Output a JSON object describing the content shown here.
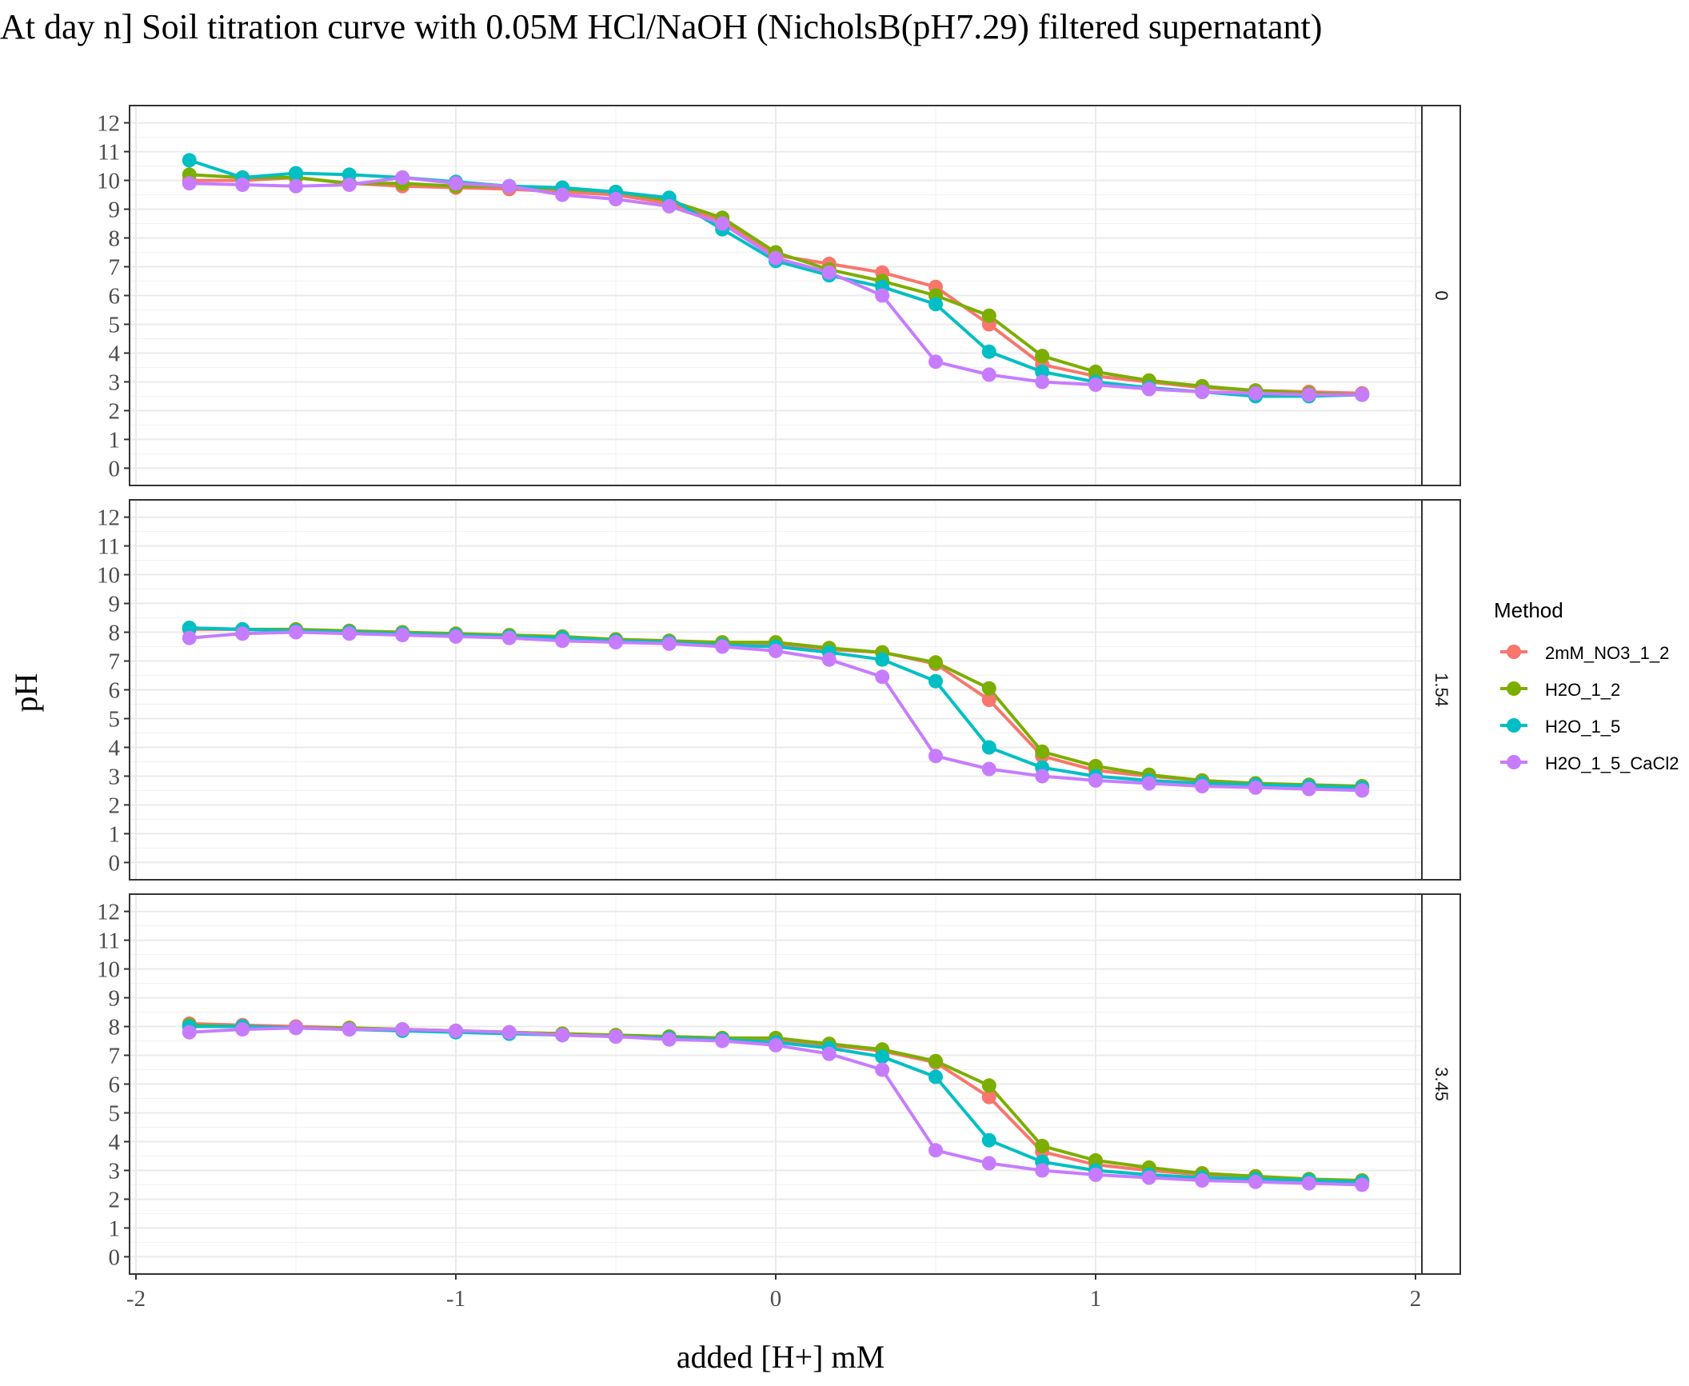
{
  "chart_data": {
    "type": "line",
    "title": "At day n] Soil titration curve with 0.05M HCl/NaOH (NicholsB(pH7.29) filtered supernatant)",
    "xlabel": "added [H+] mM",
    "ylabel": "pH",
    "xlim": [
      -2.02,
      2.02
    ],
    "ylim": [
      -0.6,
      12.6
    ],
    "x_ticks": [
      -2,
      -1,
      0,
      1,
      2
    ],
    "x_tick_labels": [
      "-2",
      "-1",
      "0",
      "1",
      "2"
    ],
    "y_ticks": [
      0,
      1,
      2,
      3,
      4,
      5,
      6,
      7,
      8,
      9,
      10,
      11,
      12
    ],
    "y_tick_labels": [
      "0",
      "1",
      "2",
      "3",
      "4",
      "5",
      "6",
      "7",
      "8",
      "9",
      "10",
      "11",
      "12"
    ],
    "grid": true,
    "legend": {
      "title": "Method",
      "placement": "right",
      "entries": [
        "2mM_NO3_1_2",
        "H2O_1_2",
        "H2O_1_5",
        "H2O_1_5_CaCl2"
      ]
    },
    "colors": {
      "2mM_NO3_1_2": "#F8766D",
      "H2O_1_2": "#7CAE00",
      "H2O_1_5": "#00BFC4",
      "H2O_1_5_CaCl2": "#C77CFF"
    },
    "x": [
      -1.833,
      -1.667,
      -1.5,
      -1.333,
      -1.167,
      -1.0,
      -0.833,
      -0.667,
      -0.5,
      -0.333,
      -0.167,
      0.0,
      0.167,
      0.333,
      0.5,
      0.667,
      0.833,
      1.0,
      1.167,
      1.333,
      1.5,
      1.667,
      1.833
    ],
    "panels": [
      {
        "strip_label": "0",
        "series": [
          {
            "name": "2mM_NO3_1_2",
            "values": [
              10.0,
              10.0,
              10.1,
              9.9,
              9.8,
              9.75,
              9.7,
              9.6,
              9.5,
              9.2,
              8.6,
              7.4,
              7.1,
              6.8,
              6.3,
              5.0,
              3.6,
              3.2,
              3.0,
              2.8,
              2.7,
              2.65,
              2.6
            ]
          },
          {
            "name": "H2O_1_2",
            "values": [
              10.2,
              10.1,
              10.1,
              9.9,
              9.9,
              9.8,
              9.8,
              9.7,
              9.6,
              9.3,
              8.7,
              7.5,
              6.9,
              6.5,
              6.0,
              5.3,
              3.9,
              3.35,
              3.05,
              2.85,
              2.7,
              2.6,
              2.55
            ]
          },
          {
            "name": "H2O_1_5",
            "values": [
              10.7,
              10.1,
              10.25,
              10.2,
              10.1,
              9.95,
              9.8,
              9.75,
              9.6,
              9.4,
              8.3,
              7.2,
              6.7,
              6.3,
              5.7,
              4.05,
              3.35,
              3.0,
              2.8,
              2.65,
              2.5,
              2.5,
              2.55
            ]
          },
          {
            "name": "H2O_1_5_CaCl2",
            "values": [
              9.9,
              9.85,
              9.8,
              9.85,
              10.1,
              9.9,
              9.8,
              9.5,
              9.35,
              9.1,
              8.5,
              7.3,
              6.8,
              6.0,
              3.7,
              3.25,
              3.0,
              2.9,
              2.75,
              2.65,
              2.6,
              2.55,
              2.55
            ]
          }
        ]
      },
      {
        "strip_label": "1.54",
        "series": [
          {
            "name": "2mM_NO3_1_2",
            "values": [
              8.1,
              8.1,
              8.05,
              8.0,
              7.95,
              7.9,
              7.85,
              7.8,
              7.75,
              7.7,
              7.6,
              7.6,
              7.4,
              7.3,
              6.9,
              5.65,
              3.7,
              3.2,
              3.0,
              2.85,
              2.75,
              2.65,
              2.6
            ]
          },
          {
            "name": "H2O_1_2",
            "values": [
              8.15,
              8.1,
              8.1,
              8.05,
              8.0,
              7.95,
              7.9,
              7.85,
              7.75,
              7.7,
              7.65,
              7.65,
              7.45,
              7.3,
              6.95,
              6.05,
              3.85,
              3.35,
              3.05,
              2.85,
              2.75,
              2.7,
              2.65
            ]
          },
          {
            "name": "H2O_1_5",
            "values": [
              8.15,
              8.1,
              8.05,
              8.0,
              7.95,
              7.9,
              7.85,
              7.8,
              7.7,
              7.65,
              7.55,
              7.5,
              7.3,
              7.05,
              6.3,
              4.0,
              3.3,
              3.0,
              2.85,
              2.75,
              2.7,
              2.65,
              2.6
            ]
          },
          {
            "name": "H2O_1_5_CaCl2",
            "values": [
              7.8,
              7.95,
              8.0,
              7.95,
              7.9,
              7.85,
              7.8,
              7.7,
              7.65,
              7.6,
              7.5,
              7.35,
              7.05,
              6.45,
              3.7,
              3.25,
              3.0,
              2.85,
              2.75,
              2.65,
              2.6,
              2.55,
              2.5
            ]
          }
        ]
      },
      {
        "strip_label": "3.45",
        "series": [
          {
            "name": "2mM_NO3_1_2",
            "values": [
              8.1,
              8.05,
              8.0,
              7.95,
              7.9,
              7.85,
              7.8,
              7.75,
              7.7,
              7.65,
              7.6,
              7.55,
              7.35,
              7.15,
              6.75,
              5.55,
              3.65,
              3.2,
              3.0,
              2.85,
              2.75,
              2.65,
              2.6
            ]
          },
          {
            "name": "H2O_1_2",
            "values": [
              8.05,
              8.0,
              7.95,
              7.95,
              7.9,
              7.85,
              7.8,
              7.75,
              7.7,
              7.65,
              7.6,
              7.6,
              7.4,
              7.2,
              6.8,
              5.95,
              3.85,
              3.35,
              3.1,
              2.9,
              2.8,
              2.7,
              2.65
            ]
          },
          {
            "name": "H2O_1_5",
            "values": [
              8.0,
              8.0,
              7.95,
              7.9,
              7.85,
              7.8,
              7.75,
              7.7,
              7.65,
              7.6,
              7.55,
              7.45,
              7.25,
              6.95,
              6.25,
              4.05,
              3.3,
              3.0,
              2.85,
              2.75,
              2.7,
              2.65,
              2.6
            ]
          },
          {
            "name": "H2O_1_5_CaCl2",
            "values": [
              7.8,
              7.9,
              7.95,
              7.9,
              7.9,
              7.85,
              7.8,
              7.7,
              7.65,
              7.55,
              7.5,
              7.35,
              7.05,
              6.5,
              3.7,
              3.25,
              3.0,
              2.85,
              2.75,
              2.65,
              2.6,
              2.55,
              2.5
            ]
          }
        ]
      }
    ]
  }
}
